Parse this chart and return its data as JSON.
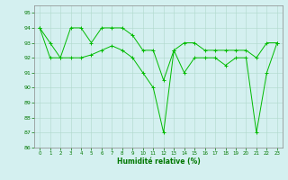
{
  "x": [
    0,
    1,
    2,
    3,
    4,
    5,
    6,
    7,
    8,
    9,
    10,
    11,
    12,
    13,
    14,
    15,
    16,
    17,
    18,
    19,
    20,
    21,
    22,
    23
  ],
  "series": [
    [
      94,
      93,
      92,
      94,
      94,
      93,
      94,
      94,
      94,
      93.5,
      92.5,
      92.5,
      90.5,
      92.5,
      93.0,
      93.0,
      92.5,
      92.5,
      92.5,
      92.5,
      92.5,
      92.0,
      93.0,
      93.0
    ],
    [
      94,
      92,
      92,
      92,
      92,
      92.2,
      92.5,
      92.8,
      92.5,
      92.0,
      91.0,
      90.0,
      87.0,
      92.5,
      91.0,
      92.0,
      92.0,
      92.0,
      91.5,
      92.0,
      92.0,
      87.0,
      91.0,
      93.0
    ]
  ],
  "line_color": "#00bb00",
  "marker": "+",
  "bg_color": "#d4f0f0",
  "grid_color": "#b0d8cc",
  "xlabel": "Humidité relative (%)",
  "xlabel_color": "#007700",
  "tick_color": "#007700",
  "ylim": [
    86,
    95.5
  ],
  "yticks": [
    86,
    87,
    88,
    89,
    90,
    91,
    92,
    93,
    94,
    95
  ],
  "xlim": [
    -0.5,
    23.5
  ],
  "xticks": [
    0,
    1,
    2,
    3,
    4,
    5,
    6,
    7,
    8,
    9,
    10,
    11,
    12,
    13,
    14,
    15,
    16,
    17,
    18,
    19,
    20,
    21,
    22,
    23
  ],
  "figwidth": 3.2,
  "figheight": 2.0,
  "dpi": 100
}
